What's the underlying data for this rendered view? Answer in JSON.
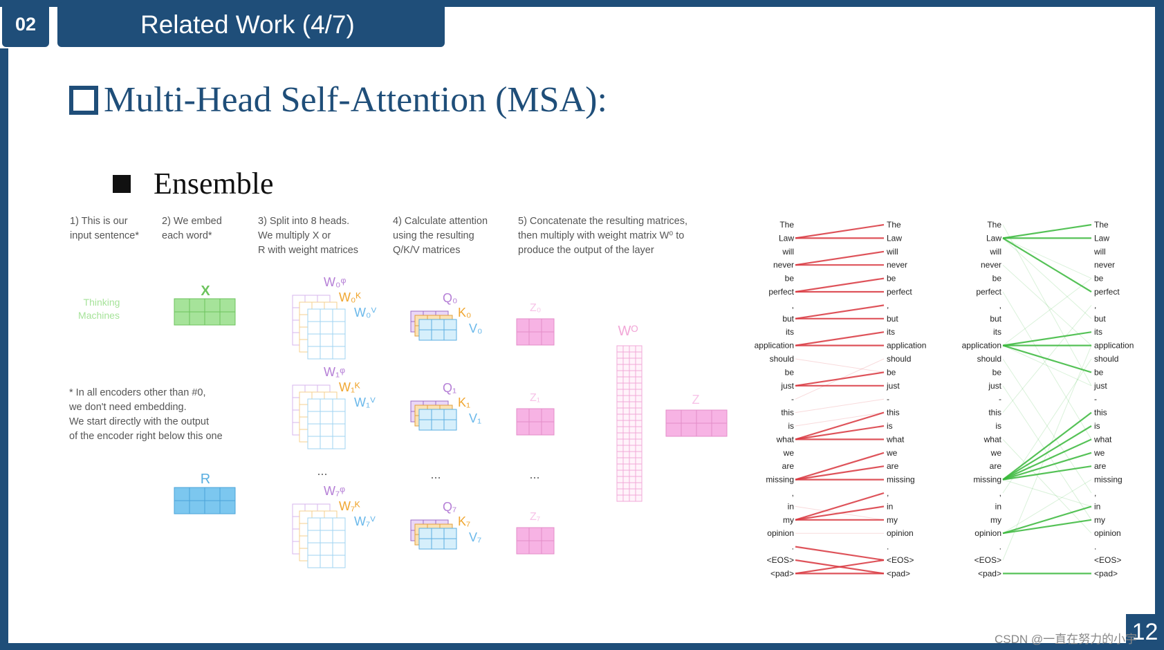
{
  "header": {
    "section_number": "02",
    "title": "Related Work   (4/7)"
  },
  "main": {
    "heading": "Multi-Head Self-Attention (MSA):",
    "bullet": "Ensemble"
  },
  "steps": [
    "1) This is our\ninput sentence*",
    "2) We embed\neach word*",
    "3) Split into 8 heads.\nWe multiply X or\nR with weight matrices",
    "4) Calculate attention\nusing the resulting\nQ/K/V matrices",
    "5) Concatenate the resulting   matrices,\nthen multiply with weight matrix W⁰ to\nproduce the output of the layer"
  ],
  "note": "* In all encoders other than #0,\nwe don't need embedding.\nWe start directly with the output\nof the encoder right below this one",
  "diagram": {
    "input_words": [
      "Thinking",
      "Machines"
    ],
    "x_label": "X",
    "r_label": "R",
    "heads": [
      {
        "wq": "W₀ᵠ",
        "wk": "W₀ᴷ",
        "wv": "W₀ⱽ",
        "q": "Q₀",
        "k": "K₀",
        "v": "V₀",
        "z": "Z₀"
      },
      {
        "wq": "W₁ᵠ",
        "wk": "W₁ᴷ",
        "wv": "W₁ⱽ",
        "q": "Q₁",
        "k": "K₁",
        "v": "V₁",
        "z": "Z₁"
      },
      {
        "wq": "W₇ᵠ",
        "wk": "W₇ᴷ",
        "wv": "W₇ⱽ",
        "q": "Q₇",
        "k": "K₇",
        "v": "V₇",
        "z": "Z₇"
      }
    ],
    "ellipsis": "...",
    "wo_label": "Wᴼ",
    "z_label": "Z",
    "colors": {
      "x": "#a6e39a",
      "r": "#7cc7ef",
      "q": "#c08ee0",
      "k": "#f3b44a",
      "v": "#7fc6f0",
      "z": "#f7b3e4",
      "wo": "#f2a8d8"
    }
  },
  "attention": {
    "tokens": [
      "The",
      "Law",
      "will",
      "never",
      "be",
      "perfect",
      ",",
      "but",
      "its",
      "application",
      "should",
      "be",
      "just",
      "-",
      "this",
      "is",
      "what",
      "we",
      "are",
      "missing",
      ",",
      "in",
      "my",
      "opinion",
      ".",
      "<EOS>",
      "<pad>"
    ],
    "left_color": "#d9363e",
    "right_color": "#38b83a"
  },
  "page_number": "12",
  "watermark": "CSDN @一直在努力的小宇"
}
